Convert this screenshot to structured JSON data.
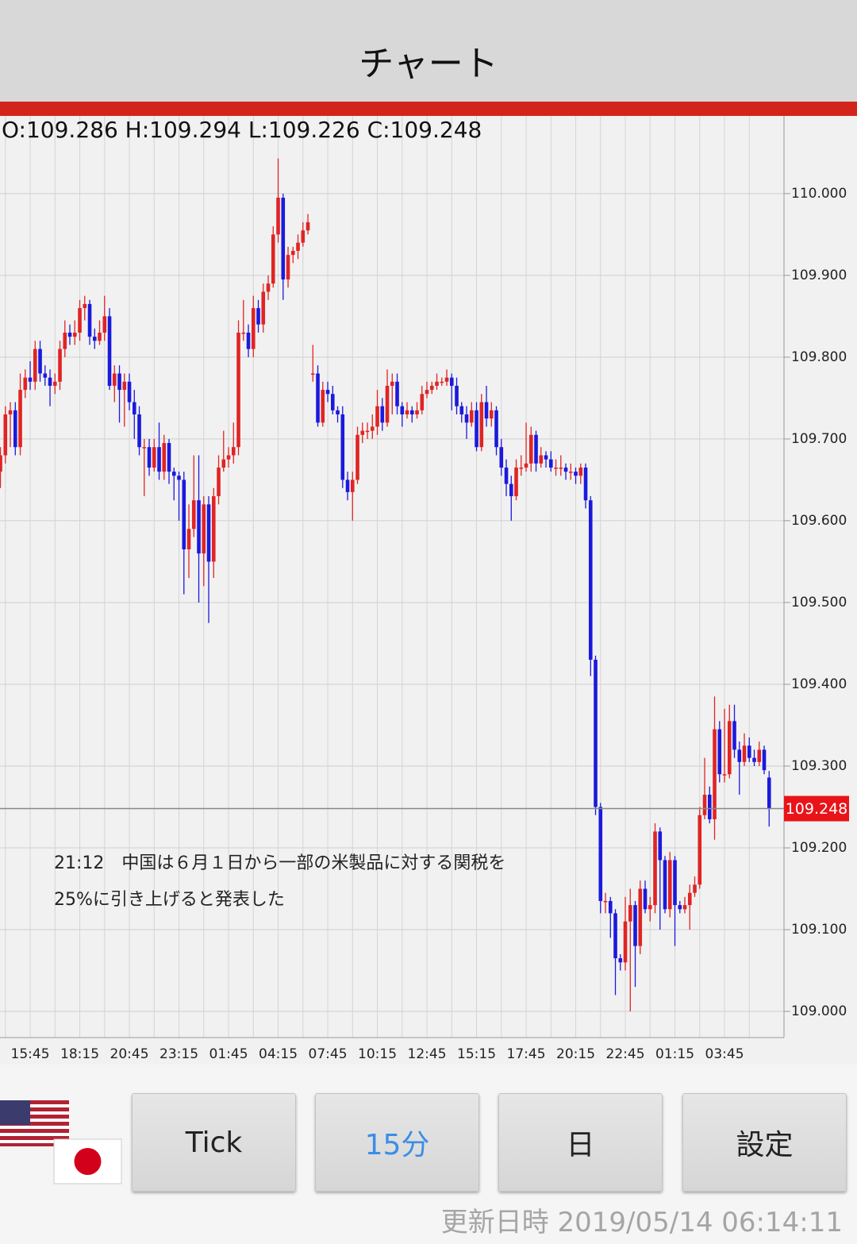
{
  "header": {
    "title": "チャート"
  },
  "chart_data": {
    "type": "candlestick",
    "ohlc_label": "O:109.286 H:109.294 L:109.226 C:109.248",
    "annotation": [
      "21:12　中国は６月１日から一部の米製品に対する関税を",
      "25%に引き上げると発表した"
    ],
    "up_color": "#e02424",
    "down_color": "#1a1adc",
    "categories": [
      null,
      null,
      null,
      null,
      null,
      null,
      "15:45",
      null,
      null,
      null,
      null,
      null,
      null,
      null,
      null,
      null,
      "18:15",
      null,
      null,
      null,
      null,
      null,
      null,
      null,
      null,
      null,
      "20:45",
      null,
      null,
      null,
      null,
      null,
      null,
      null,
      null,
      null,
      "23:15",
      null,
      null,
      null,
      null,
      null,
      null,
      null,
      null,
      null,
      "01:45",
      null,
      null,
      null,
      null,
      null,
      null,
      null,
      null,
      null,
      "04:15",
      null,
      null,
      null,
      null,
      null,
      null,
      null,
      null,
      null,
      "07:45",
      null,
      null,
      null,
      null,
      null,
      null,
      null,
      null,
      null,
      "10:15",
      null,
      null,
      null,
      null,
      null,
      null,
      null,
      null,
      null,
      "12:45",
      null,
      null,
      null,
      null,
      null,
      null,
      null,
      null,
      null,
      "15:15",
      null,
      null,
      null,
      null,
      null,
      null,
      null,
      null,
      null,
      "17:45",
      null,
      null,
      null,
      null,
      null,
      null,
      null,
      null,
      null,
      "20:15",
      null,
      null,
      null,
      null,
      null,
      null,
      null,
      null,
      null,
      "22:45",
      null,
      null,
      null,
      null,
      null,
      null,
      null,
      null,
      null,
      "01:15",
      null,
      null,
      null,
      null,
      null,
      null,
      null,
      null,
      null,
      "03:45",
      null,
      null,
      null,
      null,
      null,
      null,
      null,
      null,
      null
    ],
    "open": [
      109.66,
      109.68,
      109.73,
      109.735,
      109.69,
      109.76,
      109.775,
      109.77,
      109.81,
      109.78,
      109.775,
      109.765,
      109.77,
      109.81,
      109.83,
      109.825,
      109.83,
      109.86,
      109.865,
      109.825,
      109.82,
      109.83,
      109.85,
      109.765,
      109.78,
      109.76,
      109.77,
      109.745,
      109.73,
      109.69,
      109.69,
      109.665,
      109.69,
      109.66,
      109.695,
      109.66,
      109.655,
      109.65,
      109.565,
      109.59,
      109.625,
      109.56,
      109.62,
      109.55,
      109.63,
      109.665,
      109.675,
      109.68,
      109.69,
      109.83,
      109.83,
      109.81,
      109.86,
      109.84,
      109.88,
      109.89,
      109.95,
      109.995,
      109.895,
      109.925,
      109.93,
      109.94,
      109.955,
      109.78,
      109.78,
      109.72,
      109.76,
      109.755,
      109.735,
      109.73,
      109.65,
      109.635,
      109.65,
      109.705,
      109.71,
      109.71,
      109.715,
      109.74,
      109.72,
      109.765,
      109.77,
      109.74,
      109.73,
      109.735,
      109.73,
      109.735,
      109.755,
      109.76,
      109.765,
      109.77,
      109.77,
      109.775,
      109.765,
      109.74,
      109.73,
      109.72,
      109.735,
      109.69,
      109.745,
      109.725,
      109.735,
      109.69,
      109.665,
      109.645,
      109.63,
      109.665,
      109.665,
      109.67,
      109.705,
      109.67,
      109.68,
      109.675,
      109.665,
      109.665,
      109.665,
      109.66,
      109.66,
      109.655,
      109.665,
      109.625,
      109.43,
      109.25,
      109.135,
      109.135,
      109.12,
      109.065,
      109.06,
      109.11,
      109.13,
      109.08,
      109.15,
      109.125,
      109.13,
      109.22,
      109.185,
      109.125,
      109.185,
      109.13,
      109.125,
      109.13,
      109.145,
      109.155,
      109.24,
      109.265,
      109.235,
      109.345,
      109.29,
      109.29,
      109.355,
      109.32,
      109.305,
      109.325,
      109.31,
      109.305,
      109.32,
      109.286
    ],
    "high": [
      109.69,
      109.74,
      109.745,
      109.745,
      109.78,
      109.785,
      109.795,
      109.82,
      109.82,
      109.79,
      109.785,
      109.78,
      109.82,
      109.845,
      109.84,
      109.845,
      109.87,
      109.875,
      109.87,
      109.835,
      109.845,
      109.875,
      109.86,
      109.79,
      109.79,
      109.78,
      109.78,
      109.76,
      109.74,
      109.7,
      109.7,
      109.7,
      109.72,
      109.705,
      109.7,
      109.665,
      109.66,
      109.66,
      109.62,
      109.68,
      109.68,
      109.63,
      109.63,
      109.64,
      109.68,
      109.71,
      109.69,
      109.72,
      109.845,
      109.87,
      109.84,
      109.875,
      109.87,
      109.89,
      109.9,
      109.96,
      110.043,
      110.0,
      109.935,
      109.935,
      109.95,
      109.965,
      109.975,
      109.815,
      109.79,
      109.77,
      109.77,
      109.765,
      109.74,
      109.74,
      109.66,
      109.66,
      109.715,
      109.72,
      109.72,
      109.73,
      109.76,
      109.75,
      109.785,
      109.78,
      109.78,
      109.745,
      109.745,
      109.74,
      109.745,
      109.765,
      109.77,
      109.77,
      109.78,
      109.775,
      109.785,
      109.78,
      109.775,
      109.745,
      109.74,
      109.745,
      109.745,
      109.755,
      109.765,
      109.745,
      109.74,
      109.7,
      109.675,
      109.655,
      109.675,
      109.68,
      109.72,
      109.715,
      109.71,
      109.69,
      109.685,
      109.685,
      109.675,
      109.68,
      109.67,
      109.67,
      109.665,
      109.67,
      109.67,
      109.63,
      109.435,
      109.255,
      109.145,
      109.14,
      109.125,
      109.07,
      109.14,
      109.15,
      109.135,
      109.16,
      109.16,
      109.14,
      109.23,
      109.225,
      109.19,
      109.195,
      109.19,
      109.135,
      109.14,
      109.155,
      109.165,
      109.25,
      109.31,
      109.275,
      109.385,
      109.355,
      109.37,
      109.375,
      109.375,
      109.33,
      109.34,
      109.335,
      109.32,
      109.33,
      109.325,
      109.294
    ],
    "low": [
      109.64,
      109.67,
      109.69,
      109.68,
      109.68,
      109.75,
      109.76,
      109.76,
      109.77,
      109.765,
      109.74,
      109.755,
      109.76,
      109.8,
      109.815,
      109.815,
      109.82,
      109.845,
      109.815,
      109.81,
      109.815,
      109.82,
      109.76,
      109.745,
      109.72,
      109.715,
      109.735,
      109.7,
      109.68,
      109.63,
      109.655,
      109.66,
      109.65,
      109.65,
      109.645,
      109.625,
      109.6,
      109.51,
      109.53,
      109.58,
      109.5,
      109.52,
      109.475,
      109.53,
      109.62,
      109.66,
      109.665,
      109.67,
      109.68,
      109.82,
      109.8,
      109.8,
      109.83,
      109.83,
      109.87,
      109.885,
      109.94,
      109.87,
      109.885,
      109.915,
      109.92,
      109.935,
      109.95,
      109.77,
      109.715,
      109.715,
      109.745,
      109.73,
      109.72,
      109.64,
      109.625,
      109.6,
      109.645,
      109.695,
      109.7,
      109.7,
      109.705,
      109.71,
      109.715,
      109.73,
      109.73,
      109.715,
      109.725,
      109.72,
      109.725,
      109.73,
      109.75,
      109.755,
      109.76,
      109.765,
      109.765,
      109.735,
      109.73,
      109.72,
      109.7,
      109.715,
      109.685,
      109.685,
      109.715,
      109.715,
      109.68,
      109.655,
      109.63,
      109.6,
      109.625,
      109.655,
      109.66,
      109.66,
      109.66,
      109.665,
      109.665,
      109.66,
      109.655,
      109.655,
      109.65,
      109.65,
      109.645,
      109.645,
      109.615,
      109.41,
      109.24,
      109.12,
      109.12,
      109.09,
      109.02,
      109.05,
      109.05,
      109.0,
      109.03,
      109.07,
      109.12,
      109.11,
      109.12,
      109.1,
      109.12,
      109.115,
      109.08,
      109.12,
      109.12,
      109.1,
      109.14,
      109.15,
      109.235,
      109.23,
      109.21,
      109.28,
      109.28,
      109.285,
      109.31,
      109.265,
      109.3,
      109.305,
      109.3,
      109.3,
      109.29,
      109.226
    ],
    "close": [
      109.68,
      109.73,
      109.735,
      109.69,
      109.76,
      109.775,
      109.77,
      109.81,
      109.78,
      109.775,
      109.765,
      109.77,
      109.81,
      109.83,
      109.825,
      109.83,
      109.86,
      109.865,
      109.825,
      109.82,
      109.83,
      109.85,
      109.765,
      109.78,
      109.76,
      109.77,
      109.745,
      109.73,
      109.69,
      109.69,
      109.665,
      109.69,
      109.66,
      109.695,
      109.66,
      109.655,
      109.65,
      109.565,
      109.59,
      109.625,
      109.56,
      109.62,
      109.55,
      109.63,
      109.665,
      109.675,
      109.68,
      109.69,
      109.83,
      109.83,
      109.81,
      109.86,
      109.84,
      109.88,
      109.89,
      109.95,
      109.995,
      109.895,
      109.925,
      109.93,
      109.94,
      109.955,
      109.965,
      109.78,
      109.72,
      109.76,
      109.755,
      109.735,
      109.73,
      109.65,
      109.635,
      109.65,
      109.705,
      109.71,
      109.71,
      109.715,
      109.74,
      109.72,
      109.765,
      109.77,
      109.74,
      109.73,
      109.735,
      109.73,
      109.735,
      109.755,
      109.76,
      109.765,
      109.77,
      109.77,
      109.775,
      109.765,
      109.74,
      109.73,
      109.72,
      109.735,
      109.69,
      109.745,
      109.725,
      109.735,
      109.69,
      109.665,
      109.645,
      109.63,
      109.665,
      109.665,
      109.67,
      109.705,
      109.67,
      109.68,
      109.675,
      109.665,
      109.665,
      109.665,
      109.66,
      109.66,
      109.655,
      109.665,
      109.625,
      109.43,
      109.25,
      109.135,
      109.135,
      109.12,
      109.065,
      109.06,
      109.11,
      109.13,
      109.08,
      109.15,
      109.125,
      109.13,
      109.22,
      109.185,
      109.125,
      109.185,
      109.13,
      109.125,
      109.13,
      109.145,
      109.155,
      109.24,
      109.265,
      109.235,
      109.345,
      109.29,
      109.29,
      109.355,
      109.32,
      109.305,
      109.325,
      109.31,
      109.305,
      109.32,
      109.295,
      109.248
    ],
    "last_price": 109.248,
    "ylim": [
      108.968,
      110.095
    ],
    "yticks": [
      {
        "value": 109,
        "label": "109.000"
      },
      {
        "value": 109.1,
        "label": "109.100"
      },
      {
        "value": 109.2,
        "label": "109.200"
      },
      {
        "value": 109.3,
        "label": "109.300"
      },
      {
        "value": 109.4,
        "label": "109.400"
      },
      {
        "value": 109.5,
        "label": "109.500"
      },
      {
        "value": 109.6,
        "label": "109.600"
      },
      {
        "value": 109.7,
        "label": "109.700"
      },
      {
        "value": 109.8,
        "label": "109.800"
      },
      {
        "value": 109.9,
        "label": "109.900"
      },
      {
        "value": 110,
        "label": "110.000"
      }
    ],
    "grid": true
  },
  "buttons": [
    "Tick",
    "15分",
    "日",
    "設定"
  ],
  "footer": {
    "updated": "更新日時 2019/05/14 06:14:11"
  }
}
